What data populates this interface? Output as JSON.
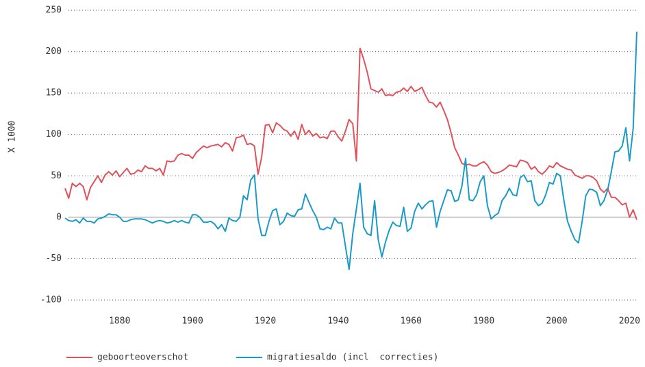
{
  "chart_data": {
    "type": "line",
    "ylabel": "X 1000",
    "xlim": [
      1865,
      2022
    ],
    "xticks": [
      1880,
      1900,
      1920,
      1940,
      1960,
      1980,
      2000,
      2020
    ],
    "ylim": [
      -100,
      250
    ],
    "yticks": [
      -100,
      -50,
      0,
      50,
      100,
      150,
      200,
      250
    ],
    "grid": true,
    "x": [
      1865,
      1866,
      1867,
      1868,
      1869,
      1870,
      1871,
      1872,
      1873,
      1874,
      1875,
      1876,
      1877,
      1878,
      1879,
      1880,
      1881,
      1882,
      1883,
      1884,
      1885,
      1886,
      1887,
      1888,
      1889,
      1890,
      1891,
      1892,
      1893,
      1894,
      1895,
      1896,
      1897,
      1898,
      1899,
      1900,
      1901,
      1902,
      1903,
      1904,
      1905,
      1906,
      1907,
      1908,
      1909,
      1910,
      1911,
      1912,
      1913,
      1914,
      1915,
      1916,
      1917,
      1918,
      1919,
      1920,
      1921,
      1922,
      1923,
      1924,
      1925,
      1926,
      1927,
      1928,
      1929,
      1930,
      1931,
      1932,
      1933,
      1934,
      1935,
      1936,
      1937,
      1938,
      1939,
      1940,
      1941,
      1942,
      1943,
      1944,
      1945,
      1946,
      1947,
      1948,
      1949,
      1950,
      1951,
      1952,
      1953,
      1954,
      1955,
      1956,
      1957,
      1958,
      1959,
      1960,
      1961,
      1962,
      1963,
      1964,
      1965,
      1966,
      1967,
      1968,
      1969,
      1970,
      1971,
      1972,
      1973,
      1974,
      1975,
      1976,
      1977,
      1978,
      1979,
      1980,
      1981,
      1982,
      1983,
      1984,
      1985,
      1986,
      1987,
      1988,
      1989,
      1990,
      1991,
      1992,
      1993,
      1994,
      1995,
      1996,
      1997,
      1998,
      1999,
      2000,
      2001,
      2002,
      2003,
      2004,
      2005,
      2006,
      2007,
      2008,
      2009,
      2010,
      2011,
      2012,
      2013,
      2014,
      2015,
      2016,
      2017,
      2018,
      2019,
      2020,
      2021,
      2022
    ],
    "series": [
      {
        "name": "geboorteoverschot",
        "color": "#e0515a",
        "values": [
          35,
          23,
          41,
          37,
          41,
          37,
          21,
          36,
          43,
          50,
          42,
          51,
          55,
          51,
          56,
          49,
          54,
          59,
          52,
          53,
          57,
          55,
          62,
          59,
          59,
          56,
          59,
          51,
          68,
          67,
          68,
          75,
          77,
          75,
          75,
          71,
          78,
          82,
          86,
          84,
          86,
          87,
          88,
          85,
          90,
          88,
          80,
          96,
          97,
          99,
          88,
          89,
          86,
          52,
          73,
          111,
          112,
          102,
          114,
          111,
          106,
          104,
          98,
          104,
          94,
          112,
          100,
          105,
          98,
          101,
          96,
          97,
          95,
          104,
          104,
          97,
          92,
          104,
          118,
          113,
          68,
          204,
          191,
          175,
          155,
          153,
          151,
          155,
          147,
          148,
          147,
          151,
          152,
          156,
          152,
          158,
          152,
          154,
          157,
          147,
          139,
          138,
          133,
          139,
          129,
          118,
          102,
          84,
          75,
          65,
          63,
          64,
          62,
          62,
          65,
          67,
          63,
          55,
          53,
          54,
          56,
          59,
          63,
          62,
          61,
          69,
          68,
          66,
          58,
          61,
          55,
          52,
          56,
          62,
          60,
          66,
          62,
          60,
          58,
          57,
          51,
          49,
          47,
          50,
          50,
          48,
          44,
          34,
          30,
          35,
          24,
          24,
          20,
          15,
          17,
          0,
          9,
          -3
        ]
      },
      {
        "name": "migratiesaldo (incl  correcties)",
        "color": "#1a9ac9",
        "values": [
          -1,
          -4,
          -5,
          -3,
          -7,
          -1,
          -5,
          -5,
          -7,
          -2,
          -1,
          1,
          4,
          3,
          3,
          0,
          -5,
          -5,
          -3,
          -2,
          -2,
          -2,
          -3,
          -5,
          -7,
          -5,
          -4,
          -5,
          -7,
          -6,
          -4,
          -6,
          -4,
          -6,
          -7,
          3,
          3,
          0,
          -6,
          -6,
          -5,
          -8,
          -14,
          -9,
          -17,
          -1,
          -4,
          -5,
          0,
          26,
          21,
          45,
          51,
          -2,
          -22,
          -22,
          -5,
          8,
          10,
          -9,
          -5,
          5,
          2,
          1,
          9,
          10,
          28,
          18,
          8,
          0,
          -14,
          -15,
          -12,
          -14,
          -1,
          -7,
          -7,
          -35,
          -63,
          -20,
          10,
          41,
          -12,
          -20,
          -22,
          20,
          -27,
          -48,
          -30,
          -16,
          -6,
          -10,
          -11,
          12,
          -17,
          -13,
          7,
          17,
          10,
          15,
          19,
          20,
          -12,
          7,
          20,
          33,
          32,
          19,
          21,
          38,
          71,
          21,
          20,
          27,
          43,
          50,
          14,
          -2,
          2,
          5,
          20,
          26,
          35,
          27,
          26,
          48,
          51,
          43,
          44,
          20,
          14,
          17,
          27,
          42,
          40,
          53,
          50,
          20,
          -5,
          -17,
          -27,
          -31,
          -5,
          26,
          34,
          33,
          30,
          14,
          20,
          33,
          55,
          79,
          80,
          86,
          108,
          68,
          107,
          224
        ]
      }
    ]
  }
}
